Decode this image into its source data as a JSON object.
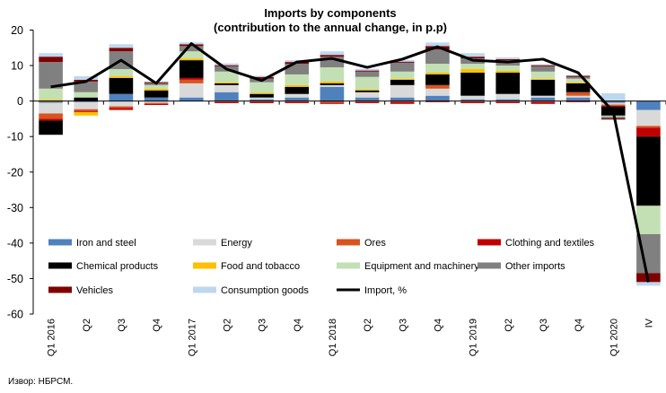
{
  "chart_data": {
    "type": "bar",
    "stacked": true,
    "title": "Imports by components",
    "subtitle": "(contribution to the annual change, in p.p)",
    "source": "Извор: НБРСМ.",
    "xlabel": "",
    "ylabel": "",
    "ylim": [
      -60,
      20
    ],
    "yticks": [
      20,
      10,
      0,
      -10,
      -20,
      -30,
      -40,
      -50,
      -60
    ],
    "grid": false,
    "legend_position": "inside-bottom",
    "categories": [
      "Q1 2016",
      "Q2",
      "Q3",
      "Q4",
      "Q1 2017",
      "Q2",
      "Q3",
      "Q4",
      "Q1 2018",
      "Q2",
      "Q3",
      "Q4",
      "Q1 2019",
      "Q2",
      "Q3",
      "Q4",
      "Q1 2020",
      "IV"
    ],
    "series": [
      {
        "name": "Iron and steel",
        "color": "#4f81bd",
        "values": [
          -0.5,
          -0.3,
          2.0,
          1.0,
          1.0,
          2.5,
          0.5,
          1.0,
          4.0,
          1.0,
          1.0,
          1.5,
          0.5,
          0.5,
          1.0,
          1.0,
          -0.5,
          -2.5
        ]
      },
      {
        "name": "Energy",
        "color": "#d9d9d9",
        "values": [
          -3.0,
          -2.0,
          -1.5,
          -0.5,
          4.0,
          2.0,
          0.5,
          1.0,
          0.5,
          1.5,
          3.5,
          2.0,
          1.0,
          1.5,
          0.5,
          0.5,
          -0.5,
          -4.5
        ]
      },
      {
        "name": "Ores",
        "color": "#d9531e",
        "values": [
          -1.5,
          -0.5,
          -0.5,
          -0.3,
          1.0,
          -0.3,
          -0.3,
          -0.3,
          -0.5,
          -0.3,
          -0.3,
          1.0,
          -0.3,
          -0.3,
          -0.3,
          1.0,
          -0.3,
          -0.5
        ]
      },
      {
        "name": "Clothing and textiles",
        "color": "#c00000",
        "values": [
          -0.5,
          -0.3,
          -0.5,
          -0.3,
          0.5,
          -0.3,
          -0.3,
          -0.3,
          -0.3,
          -0.3,
          -0.5,
          -0.3,
          -0.3,
          -0.3,
          -0.5,
          -0.3,
          -0.3,
          -2.5
        ]
      },
      {
        "name": "Chemical products",
        "color": "#000000",
        "values": [
          -4.0,
          1.0,
          4.5,
          2.0,
          5.0,
          0.5,
          1.0,
          2.0,
          0.5,
          0.5,
          1.5,
          3.0,
          6.5,
          6.0,
          4.5,
          2.5,
          -2.5,
          -19.5
        ]
      },
      {
        "name": "Food and tobacco",
        "color": "#ffc000",
        "values": [
          0.5,
          -1.0,
          0.5,
          0.5,
          0.5,
          0.3,
          0.3,
          0.5,
          0.5,
          0.3,
          0.3,
          0.5,
          1.0,
          0.5,
          0.3,
          0.3,
          0.2,
          0.0
        ]
      },
      {
        "name": "Equipment and machinery",
        "color": "#c3e0b4",
        "values": [
          3.0,
          1.5,
          2.0,
          1.0,
          2.0,
          3.0,
          3.0,
          3.0,
          4.0,
          3.5,
          2.0,
          2.5,
          1.5,
          1.5,
          2.0,
          1.0,
          -0.3,
          -8.0
        ]
      },
      {
        "name": "Other imports",
        "color": "#808080",
        "values": [
          7.5,
          3.0,
          5.0,
          0.5,
          1.5,
          1.5,
          1.0,
          3.0,
          3.0,
          1.5,
          2.5,
          4.0,
          1.5,
          1.5,
          1.5,
          0.5,
          -0.5,
          -11.0
        ]
      },
      {
        "name": "Vehicles",
        "color": "#7f0000",
        "values": [
          1.5,
          0.5,
          1.0,
          0.3,
          0.5,
          0.3,
          0.5,
          0.5,
          0.5,
          0.3,
          0.3,
          1.0,
          0.5,
          0.3,
          0.3,
          0.3,
          -0.3,
          -2.5
        ]
      },
      {
        "name": "Consumption goods",
        "color": "#bdd7ee",
        "values": [
          1.0,
          1.0,
          1.0,
          0.3,
          0.5,
          0.5,
          0.3,
          0.5,
          1.0,
          0.5,
          0.5,
          1.0,
          1.0,
          0.5,
          0.3,
          0.2,
          2.0,
          -1.0
        ]
      }
    ],
    "line_series": {
      "name": "Import, %",
      "color": "#000000",
      "values": [
        4.0,
        5.5,
        11.5,
        5.0,
        16.2,
        9.0,
        5.8,
        11.0,
        12.0,
        9.5,
        11.8,
        15.3,
        11.5,
        11.0,
        11.8,
        8.0,
        -3.0,
        -51.0
      ]
    }
  }
}
